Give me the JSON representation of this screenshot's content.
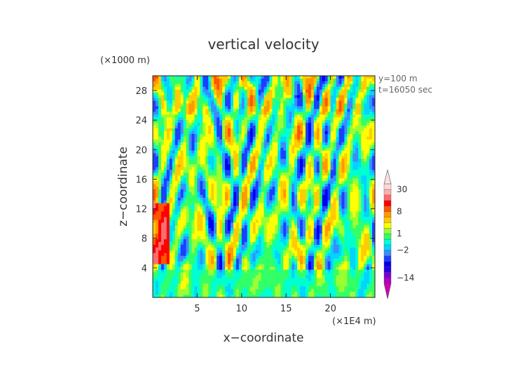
{
  "chart_data": {
    "type": "heatmap",
    "title": "vertical velocity",
    "xlabel": "x−coordinate",
    "ylabel": "z−coordinate",
    "x_unit": "(×1E4 m)",
    "y_unit": "(×1000 m)",
    "annotations": [
      "y=100 m",
      "t=16050 sec"
    ],
    "xlim": [
      0,
      25
    ],
    "ylim": [
      0,
      30
    ],
    "x_ticks": [
      5,
      10,
      15,
      20
    ],
    "x_tick_labels": [
      "5",
      "10",
      "15",
      "20"
    ],
    "y_ticks": [
      4,
      8,
      12,
      16,
      20,
      24,
      28
    ],
    "y_tick_labels": [
      "4",
      "8",
      "12",
      "16",
      "20",
      "24",
      "28"
    ],
    "colorbar": {
      "levels": [
        -20,
        -14,
        -11,
        -8,
        -5,
        -3,
        -2,
        -1,
        0,
        1,
        2,
        4,
        6,
        8,
        12,
        18,
        24,
        30,
        36
      ],
      "labels": [
        {
          "value": 30,
          "text": "30"
        },
        {
          "value": 8,
          "text": "8"
        },
        {
          "value": 1,
          "text": "1"
        },
        {
          "value": -2,
          "text": "−2"
        },
        {
          "value": -14,
          "text": "−14"
        }
      ],
      "colors": [
        "#b000c0",
        "#7a00d6",
        "#2a00e0",
        "#0000f0",
        "#1a40ff",
        "#3a8cff",
        "#00d4ff",
        "#00ffd0",
        "#33ff66",
        "#99ff33",
        "#ffff00",
        "#ffcc00",
        "#ff9900",
        "#ff5500",
        "#ff0000",
        "#ff6c6c",
        "#ffb0b0",
        "#ffd8d8"
      ],
      "extend_low_color": "#d000b0",
      "extend_high_color": "#ffe0e0"
    }
  }
}
